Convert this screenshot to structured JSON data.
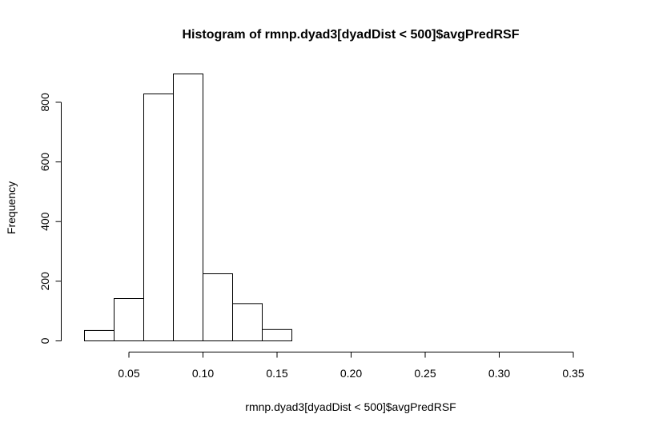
{
  "chart_data": {
    "type": "bar",
    "title": "Histogram of rmnp.dyad3[dyadDist < 500]$avgPredRSF",
    "xlabel": "rmnp.dyad3[dyadDist < 500]$avgPredRSF",
    "ylabel": "Frequency",
    "bin_edges": [
      0.02,
      0.04,
      0.06,
      0.08,
      0.1,
      0.12,
      0.14,
      0.16,
      0.18,
      0.2,
      0.22,
      0.24,
      0.26,
      0.28,
      0.3,
      0.32,
      0.34,
      0.36,
      0.38
    ],
    "values": [
      35,
      142,
      828,
      895,
      225,
      125,
      38,
      0,
      0,
      0,
      0,
      0,
      0,
      0,
      0,
      0,
      0,
      0
    ],
    "xlim": [
      0.02,
      0.38
    ],
    "ylim": [
      0,
      895
    ],
    "x_ticks": [
      0.05,
      0.1,
      0.15,
      0.2,
      0.25,
      0.3,
      0.35
    ],
    "x_tick_labels": [
      "0.05",
      "0.10",
      "0.15",
      "0.20",
      "0.25",
      "0.30",
      "0.35"
    ],
    "y_ticks": [
      0,
      200,
      400,
      600,
      800
    ],
    "y_tick_labels": [
      "0",
      "200",
      "400",
      "600",
      "800"
    ],
    "grid": false,
    "fill_color": "#ffffff",
    "stroke_color": "#000000"
  }
}
